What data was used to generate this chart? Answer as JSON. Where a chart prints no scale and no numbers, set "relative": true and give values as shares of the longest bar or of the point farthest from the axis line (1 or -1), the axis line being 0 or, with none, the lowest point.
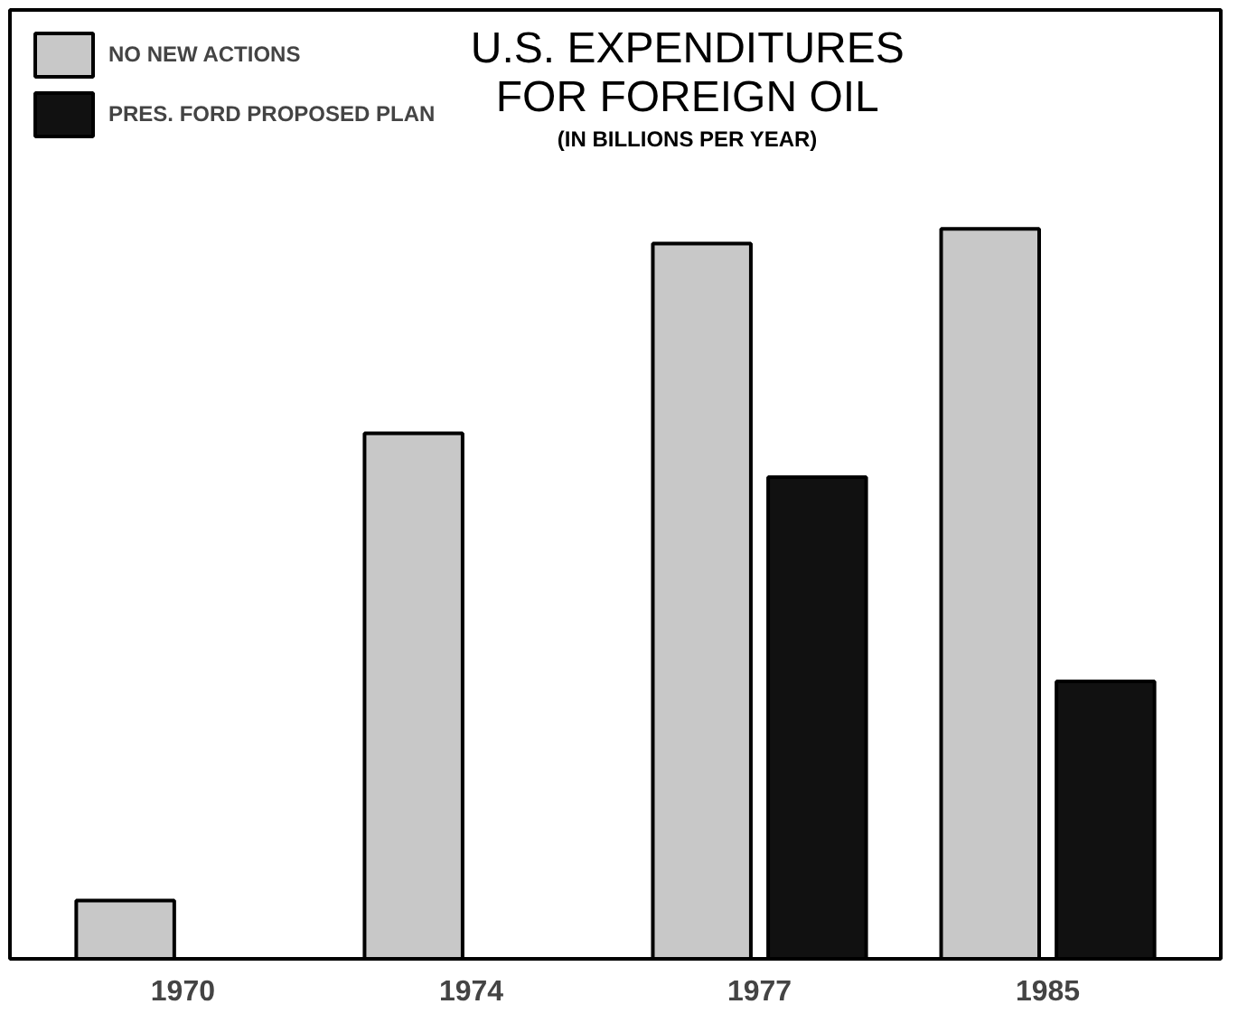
{
  "chart_data": {
    "type": "bar",
    "title": "U.S. EXPENDITURES\nFOR FOREIGN OIL",
    "subtitle": "(IN BILLIONS PER YEAR)",
    "categories": [
      "1970",
      "1974",
      "1977",
      "1985"
    ],
    "relative": true,
    "legend": "top left",
    "series": [
      {
        "name": "NO NEW ACTIONS",
        "color": "#c8c8c8",
        "values": [
          0.08,
          0.72,
          0.98,
          1.0
        ]
      },
      {
        "name": "PRES. FORD PROPOSED PLAN",
        "color": "#111111",
        "values": [
          null,
          null,
          0.66,
          0.38
        ]
      }
    ]
  }
}
